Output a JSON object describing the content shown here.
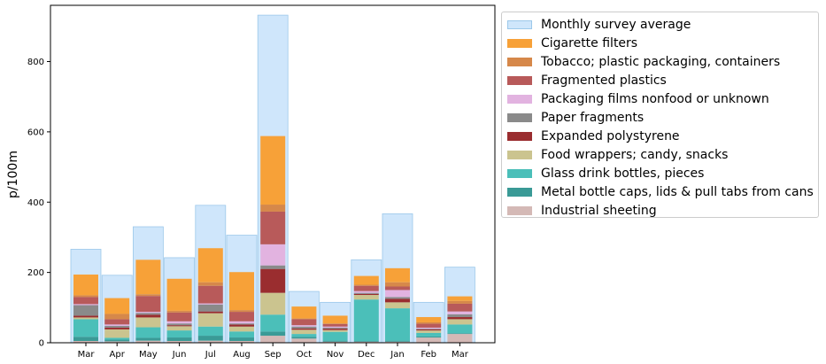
{
  "chart_data": {
    "type": "bar",
    "categories": [
      "Mar",
      "Apr",
      "May",
      "Jun",
      "Jul",
      "Aug",
      "Sep",
      "Oct",
      "Nov",
      "Dec",
      "Jan",
      "Feb",
      "Mar"
    ],
    "ylabel": "p/100m",
    "xlabel": "",
    "title": "",
    "ylim": [
      0,
      960
    ],
    "yticks": [
      0,
      200,
      400,
      600,
      800
    ],
    "legend_position": "outside-right",
    "grid": false,
    "background_series": {
      "name": "Monthly survey average",
      "color": "#cfe6fb",
      "values": [
        266,
        192,
        330,
        242,
        391,
        306,
        932,
        146,
        115,
        236,
        367,
        115,
        215
      ]
    },
    "series": [
      {
        "name": "Industrial sheeting",
        "color": "#d4b9b6",
        "values": [
          5,
          4,
          6,
          5,
          6,
          5,
          20,
          12,
          3,
          3,
          3,
          15,
          25
        ]
      },
      {
        "name": "Metal bottle caps, lids & pull tabs from cans",
        "color": "#3a9a96",
        "values": [
          12,
          5,
          8,
          10,
          14,
          10,
          12,
          5,
          3,
          2,
          3,
          3,
          2
        ]
      },
      {
        "name": "Glass drink bottles, pieces",
        "color": "#4bbfb9",
        "values": [
          50,
          5,
          30,
          20,
          26,
          17,
          48,
          8,
          25,
          118,
          92,
          10,
          25
        ]
      },
      {
        "name": "Food wrappers; candy, snacks",
        "color": "#cbc48f",
        "values": [
          5,
          24,
          28,
          12,
          38,
          14,
          62,
          12,
          5,
          13,
          17,
          7,
          15
        ]
      },
      {
        "name": "Expanded polystyrene",
        "color": "#9a2d2f",
        "values": [
          5,
          5,
          8,
          3,
          5,
          6,
          68,
          4,
          4,
          3,
          10,
          3,
          6
        ]
      },
      {
        "name": "Paper fragments",
        "color": "#8a8a8a",
        "values": [
          30,
          5,
          5,
          5,
          20,
          3,
          10,
          5,
          3,
          3,
          5,
          2,
          8
        ]
      },
      {
        "name": "Packaging films nonfood or unknown",
        "color": "#e2b3e0",
        "values": [
          3,
          4,
          3,
          6,
          3,
          6,
          60,
          4,
          3,
          5,
          20,
          3,
          8
        ]
      },
      {
        "name": "Fragmented plastics",
        "color": "#b85a5a",
        "values": [
          20,
          15,
          45,
          25,
          50,
          27,
          93,
          17,
          7,
          15,
          10,
          11,
          22
        ]
      },
      {
        "name": "Tobacco; plastic packaging, containers",
        "color": "#d6884a",
        "values": [
          5,
          15,
          5,
          5,
          10,
          5,
          20,
          2,
          2,
          3,
          12,
          4,
          8
        ]
      },
      {
        "name": "Cigarette filters",
        "color": "#f7a138",
        "values": [
          59,
          45,
          98,
          91,
          97,
          108,
          195,
          34,
          22,
          25,
          40,
          15,
          13
        ]
      }
    ]
  }
}
